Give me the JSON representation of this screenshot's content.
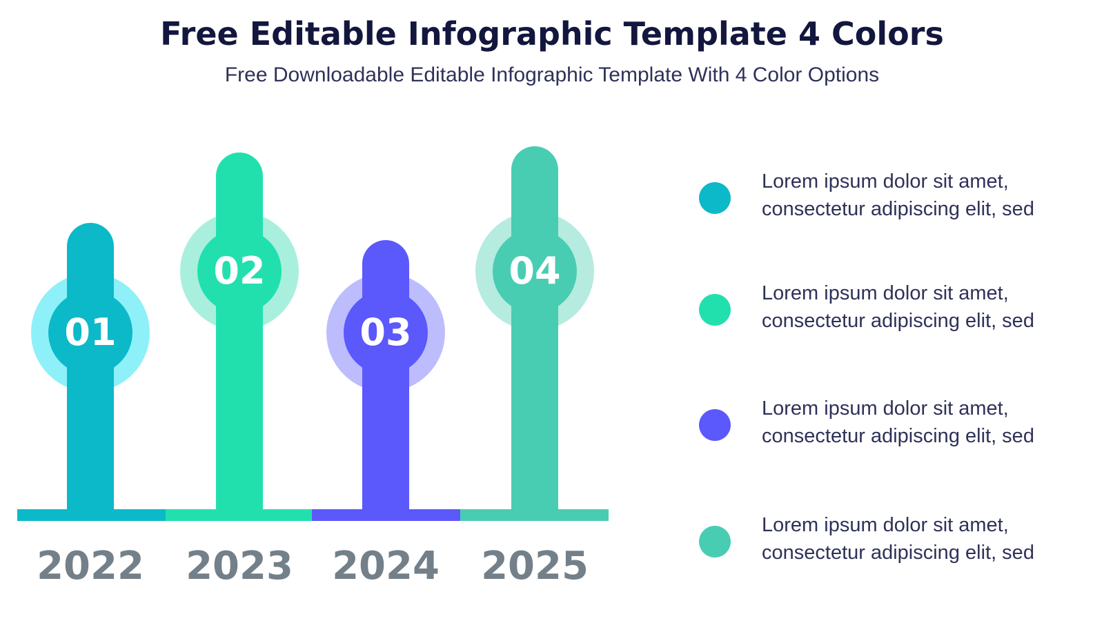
{
  "header": {
    "title": "Free Editable Infographic Template 4 Colors",
    "subtitle": "Free Downloadable Editable Infographic Template With 4 Color Options"
  },
  "steps": [
    {
      "number": "01",
      "year": "2022",
      "color": "#0cb9c9",
      "light": "#8ef0f8"
    },
    {
      "number": "02",
      "year": "2023",
      "color": "#22e0ae",
      "light": "#a8f0dd"
    },
    {
      "number": "03",
      "year": "2024",
      "color": "#5b58fc",
      "light": "#bdbcfd"
    },
    {
      "number": "04",
      "year": "2025",
      "color": "#49cdb2",
      "light": "#b6ebe0"
    }
  ],
  "legend": [
    {
      "line1": "Lorem ipsum dolor sit amet,",
      "line2": "consectetur adipiscing elit, sed",
      "color": "#0cb9c9"
    },
    {
      "line1": "Lorem ipsum dolor sit amet,",
      "line2": "consectetur adipiscing elit, sed",
      "color": "#22e0ae"
    },
    {
      "line1": "Lorem ipsum dolor sit amet,",
      "line2": "consectetur adipiscing elit, sed",
      "color": "#5b58fc"
    },
    {
      "line1": "Lorem ipsum dolor sit amet,",
      "line2": "consectetur adipiscing elit, sed",
      "color": "#49cdb2"
    }
  ]
}
